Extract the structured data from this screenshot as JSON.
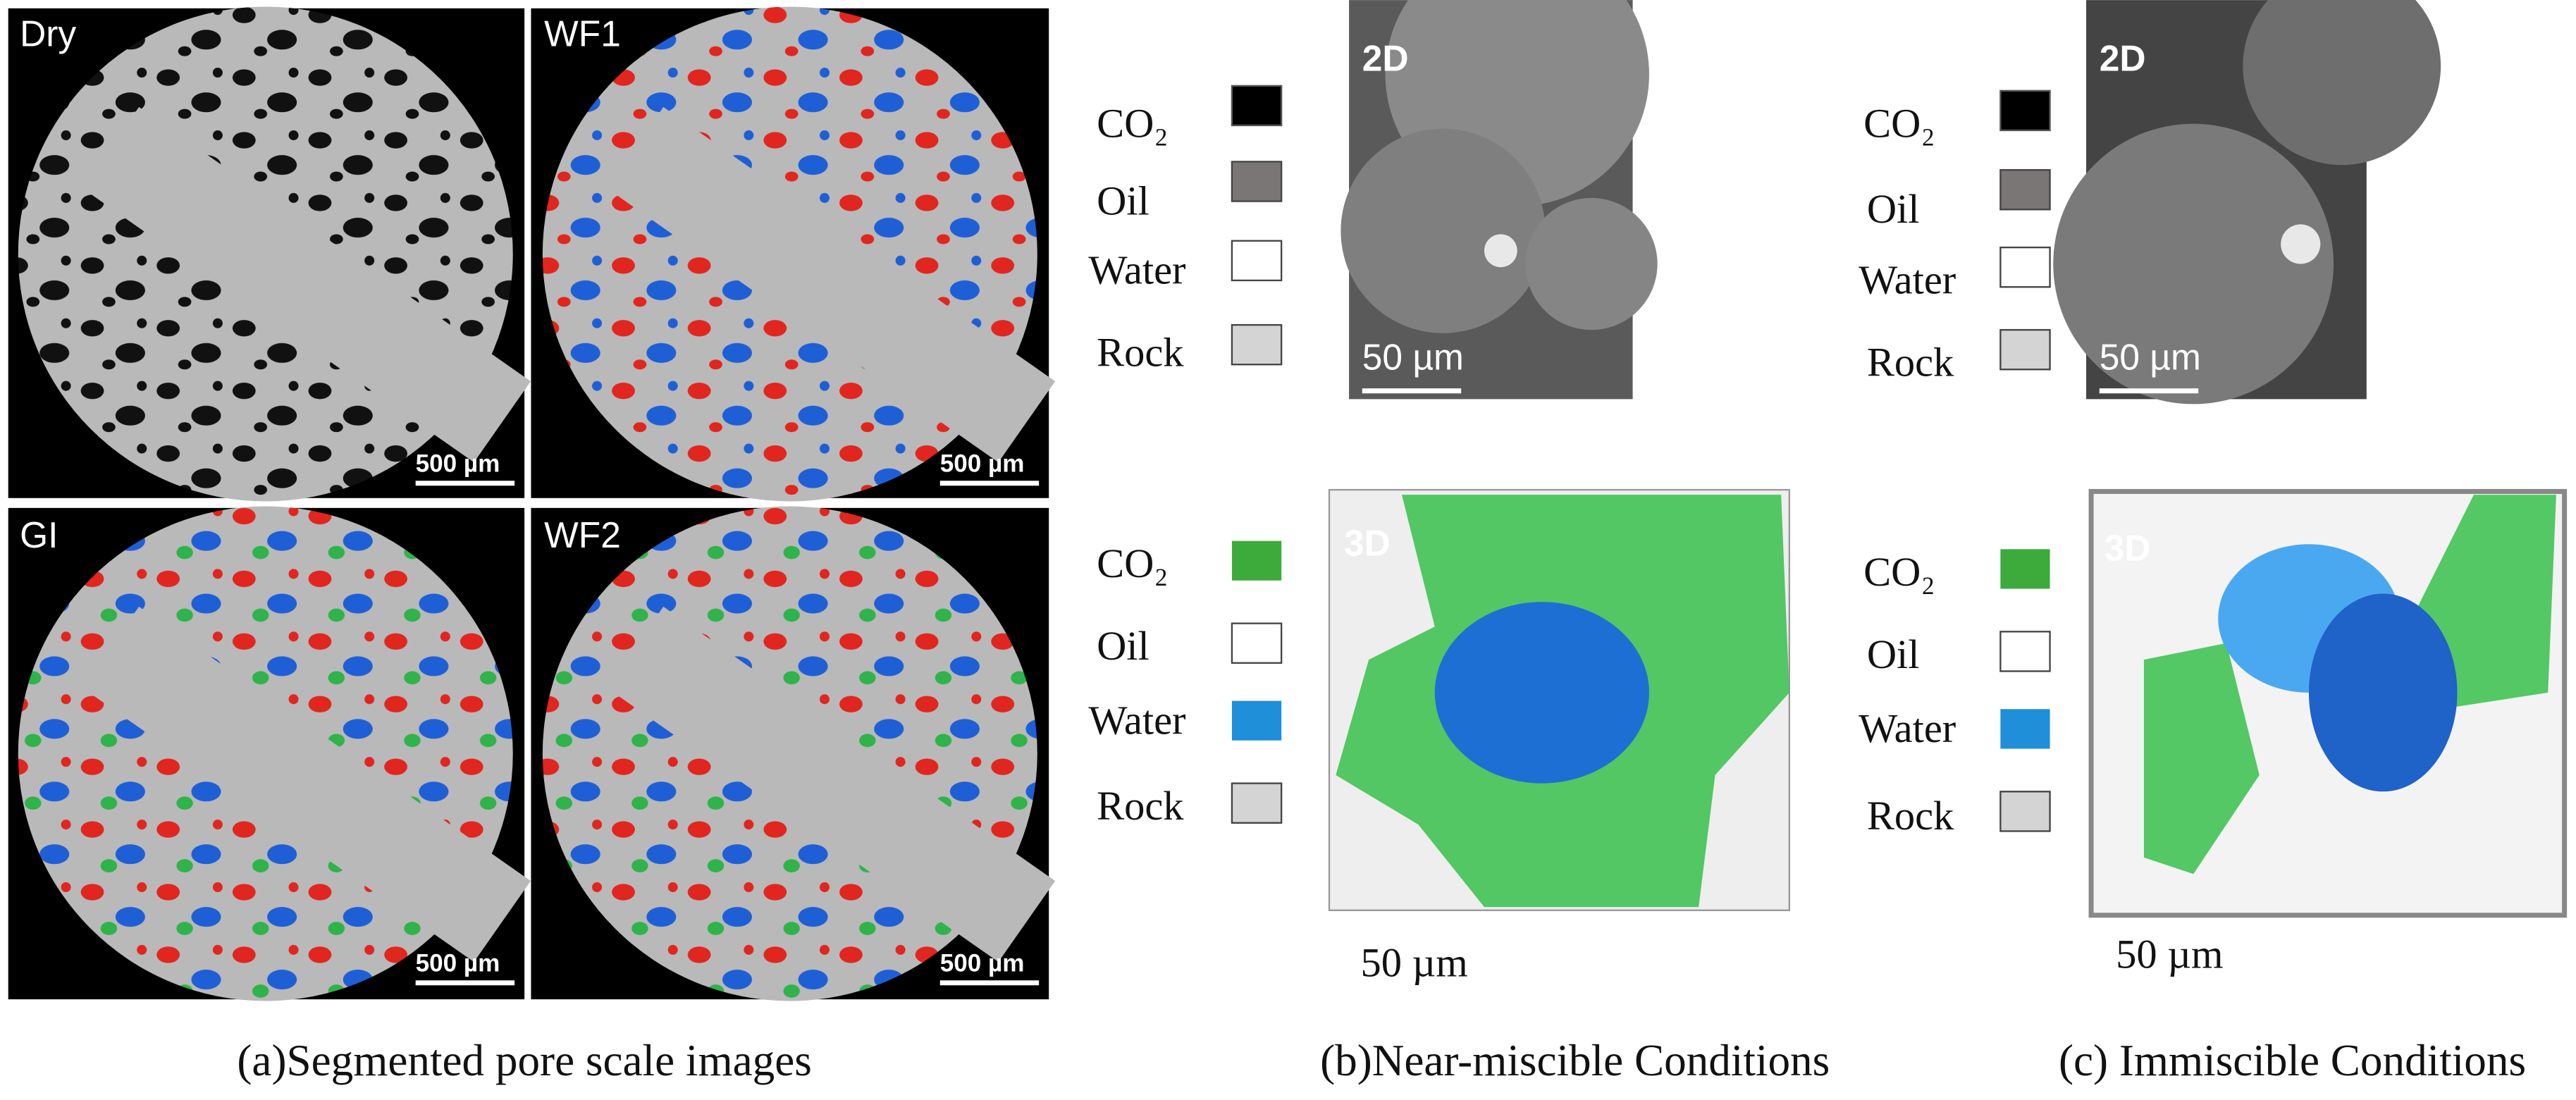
{
  "panel_a": {
    "images": [
      {
        "label": "Dry",
        "scale": "500 µm"
      },
      {
        "label": "WF1",
        "scale": "500 µm"
      },
      {
        "label": "GI",
        "scale": "500 µm"
      },
      {
        "label": "WF2",
        "scale": "500 µm"
      }
    ],
    "caption": "(a)Segmented pore scale images"
  },
  "panel_b": {
    "legend_2d": [
      "CO₂",
      "Oil",
      "Water",
      "Rock"
    ],
    "image_2d": {
      "label": "2D",
      "scale": "50 µm"
    },
    "legend_3d": [
      "CO₂",
      "Oil",
      "Water",
      "Rock"
    ],
    "image_3d": {
      "label": "3D",
      "scale": "50 µm"
    },
    "caption": "(b)Near-miscible Conditions"
  },
  "panel_c": {
    "legend_2d": [
      "CO₂",
      "Oil",
      "Water",
      "Rock"
    ],
    "image_2d": {
      "label": "2D",
      "scale": "50 µm"
    },
    "legend_3d": [
      "CO₂",
      "Oil",
      "Water",
      "Rock"
    ],
    "image_3d": {
      "label": "3D",
      "scale": "50 µm"
    },
    "caption": "(c) Immiscible Conditions"
  }
}
